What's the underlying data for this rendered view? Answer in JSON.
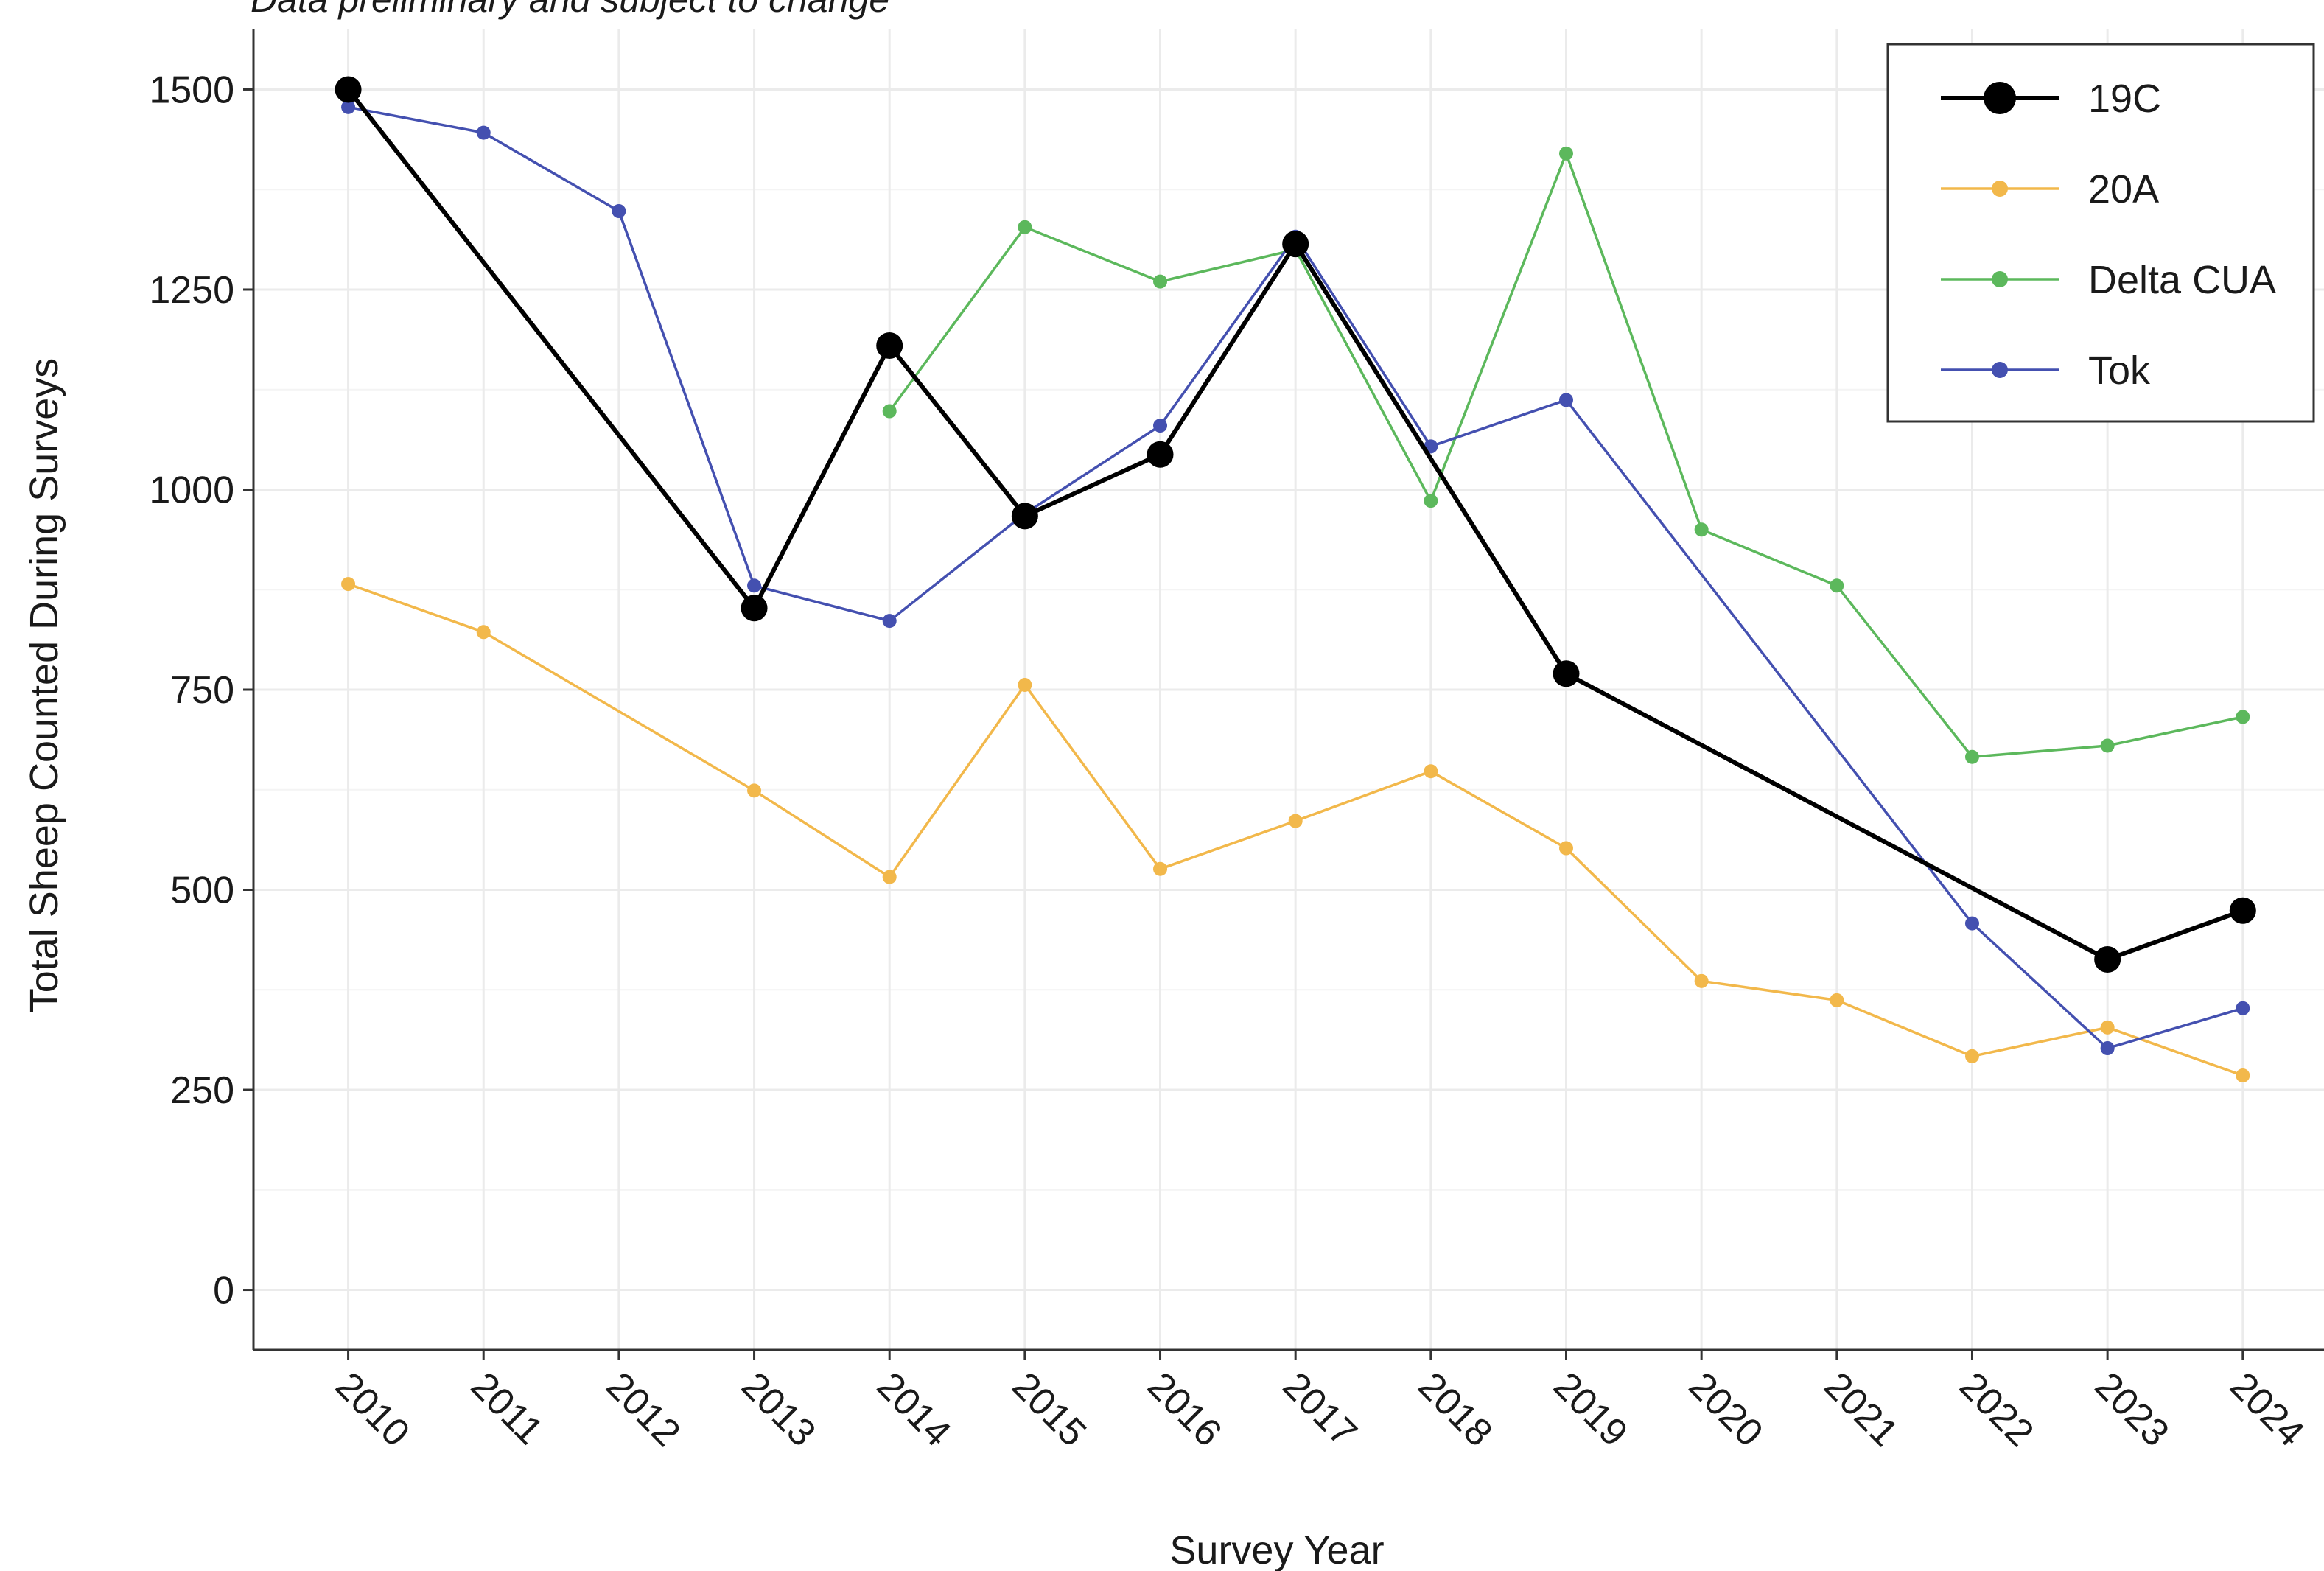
{
  "chart_data": {
    "type": "line",
    "subtitle": "Data preliminary and subject to change",
    "xlabel": "Survey Year",
    "ylabel": "Total Sheep Counted During Surveys",
    "x": [
      2010,
      2011,
      2012,
      2013,
      2014,
      2015,
      2016,
      2017,
      2018,
      2019,
      2020,
      2021,
      2022,
      2023,
      2024
    ],
    "x_tick_labels": [
      "2010",
      "2011",
      "2012",
      "2013",
      "2014",
      "2015",
      "2016",
      "2017",
      "2018",
      "2019",
      "2020",
      "2021",
      "2022",
      "2023",
      "2024"
    ],
    "yticks": [
      0,
      250,
      500,
      750,
      1000,
      1250,
      1500
    ],
    "y_tick_labels": [
      "0",
      "250",
      "500",
      "750",
      "1000",
      "1250",
      "1500"
    ],
    "ylim": [
      -75,
      1575
    ],
    "xlim": [
      2009.3,
      2024.6
    ],
    "grid": true,
    "legend_position": "top-right",
    "series": [
      {
        "name": "19C",
        "color": "#000000",
        "points": [
          [
            2010,
            1500
          ],
          [
            2013,
            852
          ],
          [
            2014,
            1180
          ],
          [
            2015,
            967
          ],
          [
            2016,
            1044
          ],
          [
            2017,
            1307
          ],
          [
            2019,
            770
          ],
          [
            2023,
            413
          ],
          [
            2024,
            474
          ]
        ]
      },
      {
        "name": "20A",
        "color": "#f2b84b",
        "points": [
          [
            2010,
            882
          ],
          [
            2011,
            822
          ],
          [
            2013,
            624
          ],
          [
            2014,
            516
          ],
          [
            2015,
            756
          ],
          [
            2016,
            526
          ],
          [
            2017,
            586
          ],
          [
            2018,
            648
          ],
          [
            2019,
            552
          ],
          [
            2020,
            386
          ],
          [
            2021,
            362
          ],
          [
            2022,
            292
          ],
          [
            2023,
            328
          ],
          [
            2024,
            268
          ]
        ]
      },
      {
        "name": "Delta CUA",
        "color": "#5cb85c",
        "points": [
          [
            2014,
            1098
          ],
          [
            2015,
            1328
          ],
          [
            2016,
            1260
          ],
          [
            2017,
            1300
          ],
          [
            2018,
            986
          ],
          [
            2019,
            1420
          ],
          [
            2020,
            950
          ],
          [
            2021,
            880
          ],
          [
            2022,
            666
          ],
          [
            2023,
            680
          ],
          [
            2024,
            716
          ]
        ]
      },
      {
        "name": "Tok",
        "color": "#4450b0",
        "points": [
          [
            2010,
            1478
          ],
          [
            2011,
            1446
          ],
          [
            2012,
            1348
          ],
          [
            2013,
            880
          ],
          [
            2014,
            836
          ],
          [
            2015,
            970
          ],
          [
            2016,
            1080
          ],
          [
            2017,
            1316
          ],
          [
            2018,
            1054
          ],
          [
            2019,
            1112
          ],
          [
            2022,
            458
          ],
          [
            2023,
            302
          ],
          [
            2024,
            352
          ]
        ]
      }
    ]
  }
}
